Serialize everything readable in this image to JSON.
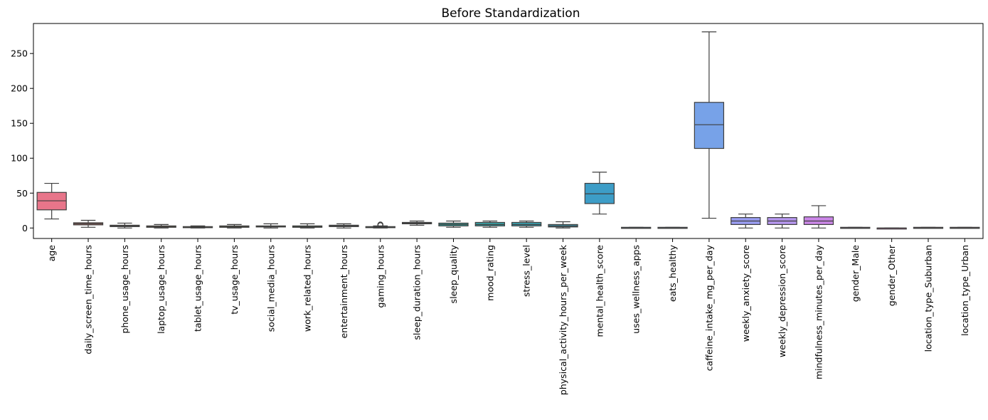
{
  "chart_data": {
    "type": "box",
    "title": "Before Standardization",
    "xlabel": "",
    "ylabel": "",
    "ylim": [
      -15,
      293
    ],
    "yticks": [
      0,
      50,
      100,
      150,
      200,
      250
    ],
    "grid": false,
    "categories": [
      {
        "label": "age",
        "color": "#e8758a",
        "min": 13,
        "q1": 26,
        "median": 39,
        "q3": 51,
        "max": 64,
        "outliers": []
      },
      {
        "label": "daily_screen_time_hours",
        "color": "#e27c6d",
        "min": 1,
        "q1": 4.5,
        "median": 6,
        "q3": 7.5,
        "max": 11,
        "outliers": []
      },
      {
        "label": "phone_usage_hours",
        "color": "#d9874b",
        "min": 0,
        "q1": 2,
        "median": 3,
        "q3": 4,
        "max": 7,
        "outliers": []
      },
      {
        "label": "laptop_usage_hours",
        "color": "#c2933f",
        "min": 0,
        "q1": 1,
        "median": 2,
        "q3": 3,
        "max": 5,
        "outliers": []
      },
      {
        "label": "tablet_usage_hours",
        "color": "#ab9a3e",
        "min": 0,
        "q1": 0.5,
        "median": 1,
        "q3": 2,
        "max": 3,
        "outliers": []
      },
      {
        "label": "tv_usage_hours",
        "color": "#98a13d",
        "min": 0,
        "q1": 1,
        "median": 2,
        "q3": 3,
        "max": 5,
        "outliers": []
      },
      {
        "label": "social_media_hours",
        "color": "#7fa83c",
        "min": 0,
        "q1": 1.5,
        "median": 2,
        "q3": 3,
        "max": 6,
        "outliers": []
      },
      {
        "label": "work_related_hours",
        "color": "#4cae4d",
        "min": 0,
        "q1": 1,
        "median": 2,
        "q3": 3,
        "max": 6,
        "outliers": []
      },
      {
        "label": "entertainment_hours",
        "color": "#3aac75",
        "min": 0,
        "q1": 2,
        "median": 3,
        "q3": 4,
        "max": 6,
        "outliers": []
      },
      {
        "label": "gaming_hours",
        "color": "#37a98a",
        "min": 0,
        "q1": 0.5,
        "median": 1,
        "q3": 2,
        "max": 3,
        "outliers": [
          4,
          4.5,
          5
        ]
      },
      {
        "label": "sleep_duration_hours",
        "color": "#36a796",
        "min": 4,
        "q1": 6,
        "median": 7,
        "q3": 8,
        "max": 10,
        "outliers": []
      },
      {
        "label": "sleep_quality",
        "color": "#38a59f",
        "min": 1,
        "q1": 3,
        "median": 5,
        "q3": 7,
        "max": 10,
        "outliers": []
      },
      {
        "label": "mood_rating",
        "color": "#39a3a7",
        "min": 1,
        "q1": 3,
        "median": 5,
        "q3": 8,
        "max": 10,
        "outliers": []
      },
      {
        "label": "stress_level",
        "color": "#3aa2b0",
        "min": 1,
        "q1": 3,
        "median": 5,
        "q3": 8,
        "max": 10,
        "outliers": []
      },
      {
        "label": "physical_activity_hours_per_week",
        "color": "#3ba0ba",
        "min": 0,
        "q1": 1.5,
        "median": 3,
        "q3": 5,
        "max": 9,
        "outliers": []
      },
      {
        "label": "mental_health_score",
        "color": "#3d9dc7",
        "min": 20,
        "q1": 35,
        "median": 49,
        "q3": 64,
        "max": 80,
        "outliers": []
      },
      {
        "label": "uses_wellness_apps",
        "color": "#4898d9",
        "min": 0,
        "q1": 0,
        "median": 0,
        "q3": 1,
        "max": 1,
        "outliers": []
      },
      {
        "label": "eats_healthy",
        "color": "#5b95e4",
        "min": 0,
        "q1": 0,
        "median": 0,
        "q3": 1,
        "max": 1,
        "outliers": []
      },
      {
        "label": "caffeine_intake_mg_per_day",
        "color": "#77a2e8",
        "min": 14,
        "q1": 114,
        "median": 148,
        "q3": 180,
        "max": 281,
        "outliers": []
      },
      {
        "label": "weekly_anxiety_score",
        "color": "#999cf0",
        "min": 0,
        "q1": 5,
        "median": 10,
        "q3": 15,
        "max": 20,
        "outliers": []
      },
      {
        "label": "weekly_depression_score",
        "color": "#b596ed",
        "min": 0,
        "q1": 5,
        "median": 10,
        "q3": 15,
        "max": 20,
        "outliers": []
      },
      {
        "label": "mindfulness_minutes_per_day",
        "color": "#ca86e6",
        "min": 0,
        "q1": 5,
        "median": 10,
        "q3": 16,
        "max": 32,
        "outliers": []
      },
      {
        "label": "gender_Male",
        "color": "#de7cd0",
        "min": 0,
        "q1": 0,
        "median": 0,
        "q3": 1,
        "max": 1,
        "outliers": []
      },
      {
        "label": "gender_Other",
        "color": "#e67cbf",
        "min": 0,
        "q1": 0,
        "median": 0,
        "q3": 0,
        "max": 0,
        "outliers": []
      },
      {
        "label": "location_type_Suburban",
        "color": "#e87ba9",
        "min": 0,
        "q1": 0,
        "median": 0,
        "q3": 1,
        "max": 1,
        "outliers": []
      },
      {
        "label": "location_type_Urban",
        "color": "#e87a96",
        "min": 0,
        "q1": 0,
        "median": 0,
        "q3": 1,
        "max": 1,
        "outliers": []
      }
    ]
  }
}
